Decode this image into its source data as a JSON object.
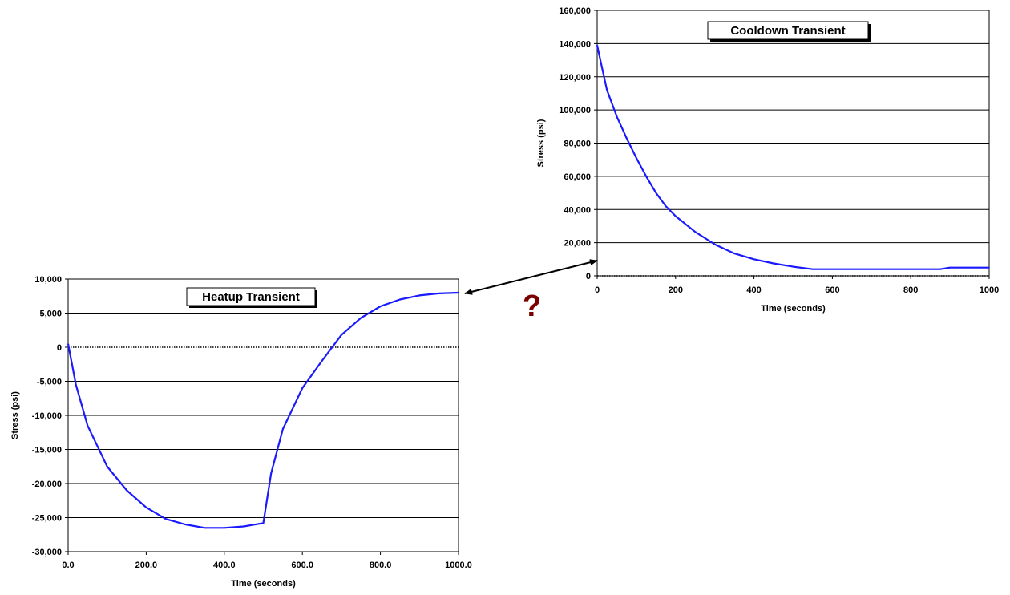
{
  "annotation": {
    "text": "?",
    "color": "#7a0000"
  },
  "chart_data": [
    {
      "type": "line",
      "title": "Heatup Transient",
      "xlabel": "Time (seconds)",
      "ylabel": "Stress (psi)",
      "xlim": [
        0,
        1000
      ],
      "ylim": [
        -30000,
        10000
      ],
      "xticks": [
        0,
        200,
        400,
        600,
        800,
        1000
      ],
      "xtick_labels": [
        "0.0",
        "200.0",
        "400.0",
        "600.0",
        "800.0",
        "1000.0"
      ],
      "yticks": [
        -30000,
        -25000,
        -20000,
        -15000,
        -10000,
        -5000,
        0,
        5000,
        10000
      ],
      "ytick_labels": [
        "-30,000",
        "-25,000",
        "-20,000",
        "-15,000",
        "-10,000",
        "-5,000",
        "0",
        "5,000",
        "10,000"
      ],
      "grid": "horizontal",
      "zero_line": true,
      "line_color": "#1a1aff",
      "series": [
        {
          "x": [
            0,
            20,
            50,
            100,
            150,
            200,
            250,
            300,
            350,
            400,
            450,
            500,
            520,
            550,
            600,
            650,
            700,
            750,
            800,
            850,
            900,
            950,
            1000
          ],
          "values": [
            500,
            -5500,
            -11500,
            -17500,
            -21000,
            -23500,
            -25200,
            -26000,
            -26500,
            -26500,
            -26300,
            -25800,
            -18500,
            -12000,
            -6000,
            -2000,
            1800,
            4300,
            6000,
            7000,
            7600,
            7900,
            8000
          ]
        }
      ]
    },
    {
      "type": "line",
      "title": "Cooldown Transient",
      "xlabel": "Time (seconds)",
      "ylabel": "Stress (psi)",
      "xlim": [
        0,
        1000
      ],
      "ylim": [
        0,
        160000
      ],
      "xticks": [
        0,
        200,
        400,
        600,
        800,
        1000
      ],
      "xtick_labels": [
        "0",
        "200",
        "400",
        "600",
        "800",
        "1000"
      ],
      "yticks": [
        0,
        20000,
        40000,
        60000,
        80000,
        100000,
        120000,
        140000,
        160000
      ],
      "ytick_labels": [
        "0",
        "20,000",
        "40,000",
        "60,000",
        "80,000",
        "100,000",
        "120,000",
        "140,000",
        "160,000"
      ],
      "grid": "horizontal",
      "zero_line": true,
      "line_color": "#1a1aff",
      "series": [
        {
          "x": [
            0,
            10,
            25,
            50,
            75,
            100,
            125,
            150,
            175,
            200,
            250,
            300,
            350,
            400,
            450,
            500,
            550,
            600,
            700,
            800,
            875,
            900,
            1000
          ],
          "values": [
            139000,
            128000,
            112000,
            96000,
            83000,
            71000,
            60000,
            50000,
            42000,
            36000,
            26500,
            19000,
            13500,
            10000,
            7500,
            5500,
            4000,
            4000,
            4000,
            4000,
            4000,
            5000,
            5000
          ]
        }
      ]
    }
  ]
}
